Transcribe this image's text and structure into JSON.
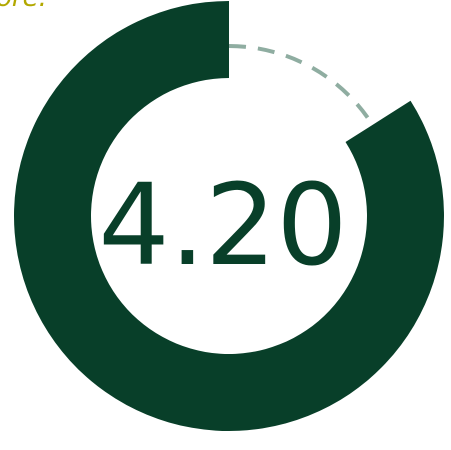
{
  "caption": "ore.",
  "chart_data": {
    "type": "pie",
    "value": 4.2,
    "max": 5,
    "display_value": "4.20",
    "title": "",
    "colors": {
      "filled": "#083f29",
      "remaining": "#8fada1",
      "score_text": "#083f29",
      "caption": "#b2a800"
    }
  }
}
